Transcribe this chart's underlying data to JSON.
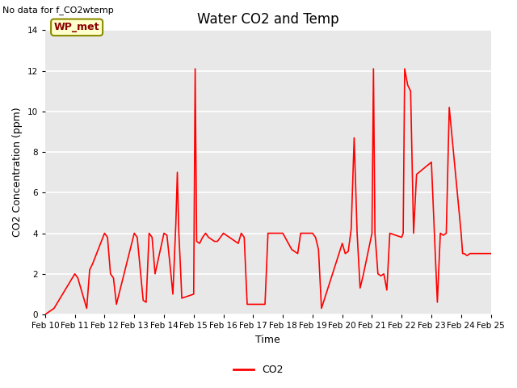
{
  "title": "Water CO2 and Temp",
  "xlabel": "Time",
  "ylabel": "CO2 Concentration (ppm)",
  "no_data_text": "No data for f_CO2wtemp",
  "wp_met_label": "WP_met",
  "legend_label": "CO2",
  "line_color": "red",
  "bg_color": "#e8e8e8",
  "ylim": [
    0,
    14
  ],
  "yticks": [
    0,
    2,
    4,
    6,
    8,
    10,
    12,
    14
  ],
  "x_labels": [
    "Feb 10",
    "Feb 11",
    "Feb 12",
    "Feb 13",
    "Feb 14",
    "Feb 15",
    "Feb 16",
    "Feb 17",
    "Feb 18",
    "Feb 19",
    "Feb 20",
    "Feb 21",
    "Feb 22",
    "Feb 23",
    "Feb 24",
    "Feb 25"
  ],
  "x_values": [
    0,
    1,
    2,
    3,
    4,
    5,
    6,
    7,
    8,
    9,
    10,
    11,
    12,
    13,
    14,
    15
  ],
  "co2_x": [
    0,
    0.3,
    1.0,
    1.1,
    1.4,
    1.5,
    1.6,
    2.0,
    2.1,
    2.2,
    2.3,
    2.4,
    3.0,
    3.1,
    3.3,
    3.4,
    3.5,
    3.6,
    3.7,
    4.0,
    4.1,
    4.2,
    4.3,
    4.4,
    4.45,
    4.5,
    4.55,
    4.6,
    5.0,
    5.05,
    5.1,
    5.2,
    5.3,
    5.4,
    5.5,
    5.6,
    5.7,
    5.8,
    6.0,
    6.1,
    6.2,
    6.3,
    6.4,
    6.5,
    6.6,
    6.7,
    6.8,
    7.0,
    7.2,
    7.4,
    7.5,
    8.0,
    8.3,
    8.5,
    8.6,
    9.0,
    9.1,
    9.2,
    9.3,
    10.0,
    10.1,
    10.2,
    10.3,
    10.4,
    10.5,
    10.6,
    10.7,
    11.0,
    11.05,
    11.1,
    11.2,
    11.3,
    11.4,
    11.5,
    11.6,
    12.0,
    12.05,
    12.1,
    12.2,
    12.3,
    12.4,
    12.5,
    13.0,
    13.1,
    13.2,
    13.3,
    13.4,
    13.5,
    13.6,
    14.0,
    14.05,
    14.1,
    14.2,
    14.3,
    14.4,
    14.5,
    15.0
  ],
  "co2_y": [
    0,
    0.3,
    2.0,
    1.8,
    0.3,
    2.2,
    2.5,
    4.0,
    3.8,
    2.0,
    1.8,
    0.5,
    4.0,
    3.8,
    0.7,
    0.6,
    4.0,
    3.8,
    2.0,
    4.0,
    3.9,
    2.5,
    1.0,
    4.5,
    7.0,
    4.0,
    2.5,
    0.8,
    1.0,
    12.1,
    3.6,
    3.5,
    3.8,
    4.0,
    3.8,
    3.7,
    3.6,
    3.6,
    4.0,
    3.9,
    3.8,
    3.7,
    3.6,
    3.5,
    4.0,
    3.8,
    0.5,
    0.5,
    0.5,
    0.5,
    4.0,
    4.0,
    3.2,
    3.0,
    4.0,
    4.0,
    3.8,
    3.2,
    0.3,
    3.5,
    3.0,
    3.1,
    4.2,
    8.7,
    4.0,
    1.3,
    1.9,
    4.0,
    12.1,
    4.0,
    2.0,
    1.9,
    2.0,
    1.2,
    4.0,
    3.8,
    4.0,
    12.1,
    11.3,
    11.0,
    4.0,
    6.9,
    7.5,
    4.0,
    0.6,
    4.0,
    3.9,
    4.0,
    10.2,
    4.0,
    3.0,
    3.0,
    2.9,
    3.0,
    3.0,
    3.0,
    3.0
  ]
}
